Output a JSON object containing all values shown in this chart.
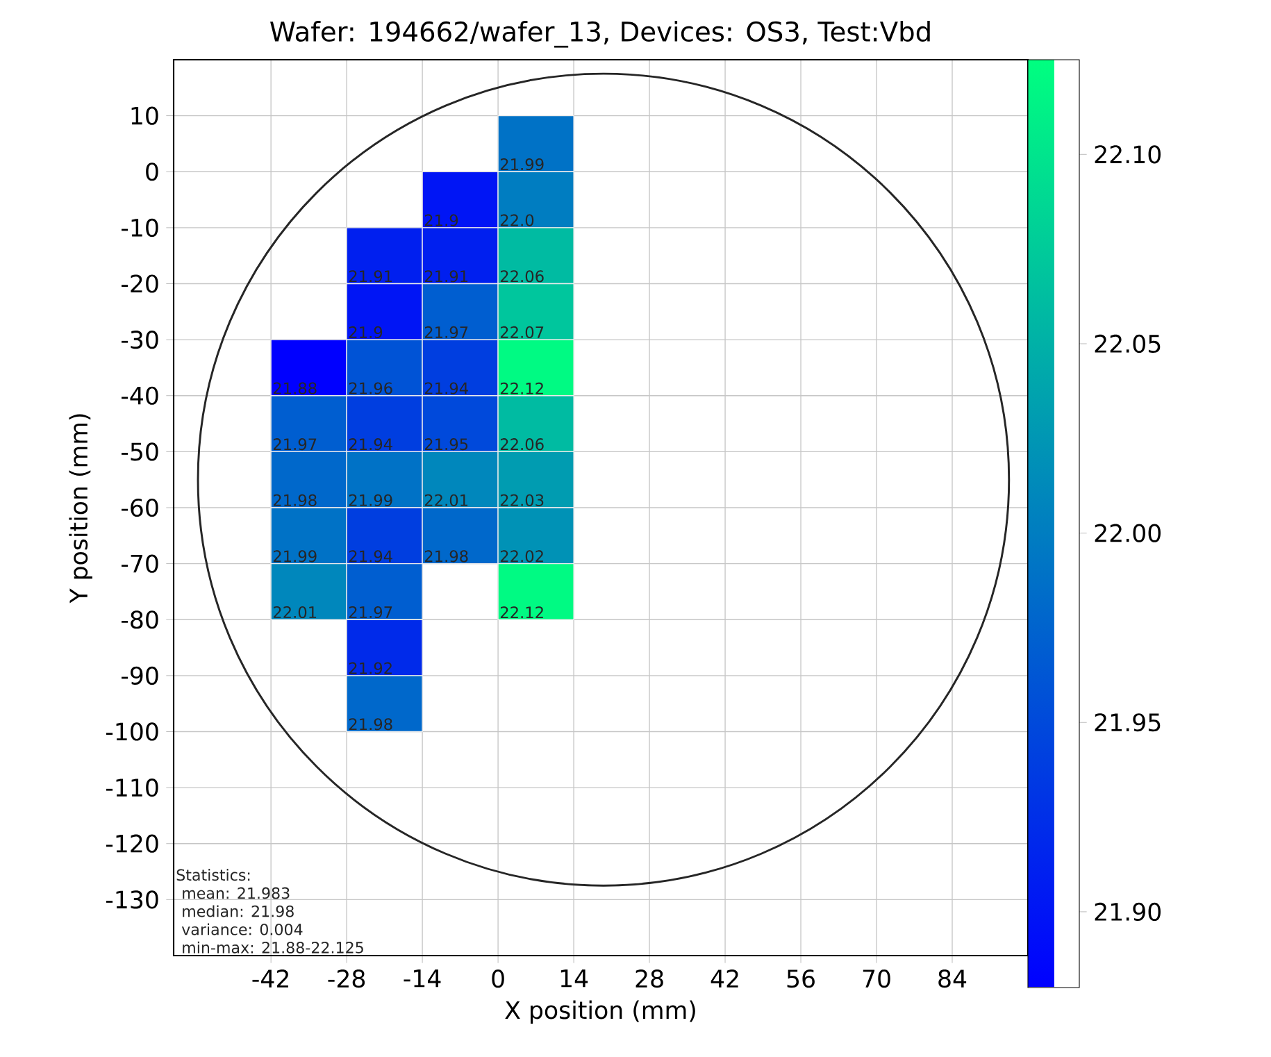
{
  "chart_data": {
    "type": "heatmap",
    "title": "Wafer: 194662/wafer_13, Devices: OS3, Test:Vbd",
    "xlabel": "X position (mm)",
    "ylabel": "Y position (mm)",
    "x": [
      -35,
      -21,
      -7,
      7
    ],
    "y": [
      5,
      -5,
      -15,
      -25,
      -35,
      -45,
      -55,
      -65,
      -75,
      -85,
      -95
    ],
    "cells": [
      [
        null,
        null,
        null,
        21.99
      ],
      [
        null,
        null,
        21.9,
        22.0
      ],
      [
        null,
        21.91,
        21.91,
        22.06
      ],
      [
        null,
        21.9,
        21.97,
        22.07
      ],
      [
        21.88,
        21.96,
        21.94,
        22.12
      ],
      [
        21.97,
        21.94,
        21.95,
        22.06
      ],
      [
        21.98,
        21.99,
        22.01,
        22.03
      ],
      [
        21.99,
        21.94,
        21.98,
        22.02
      ],
      [
        22.01,
        21.97,
        null,
        22.12
      ],
      [
        null,
        21.92,
        null,
        null
      ],
      [
        null,
        21.98,
        null,
        null
      ]
    ],
    "cell_labels": [
      [
        null,
        null,
        null,
        "21.99"
      ],
      [
        null,
        null,
        "21.9",
        "22.0"
      ],
      [
        null,
        "21.91",
        "21.91",
        "22.06"
      ],
      [
        null,
        "21.9",
        "21.97",
        "22.07"
      ],
      [
        "21.88",
        "21.96",
        "21.94",
        "22.12"
      ],
      [
        "21.97",
        "21.94",
        "21.95",
        "22.06"
      ],
      [
        "21.98",
        "21.99",
        "22.01",
        "22.03"
      ],
      [
        "21.99",
        "21.94",
        "21.98",
        "22.02"
      ],
      [
        "22.01",
        "21.97",
        null,
        "22.12"
      ],
      [
        null,
        "21.92",
        null,
        null
      ],
      [
        null,
        "21.98",
        null,
        null
      ]
    ],
    "xlim": [
      -60,
      98
    ],
    "ylim": [
      -140,
      20
    ],
    "xticks": [
      -42,
      -28,
      -14,
      0,
      14,
      28,
      42,
      56,
      70,
      84
    ],
    "yticks": [
      10,
      0,
      -10,
      -20,
      -30,
      -40,
      -50,
      -60,
      -70,
      -80,
      -90,
      -100,
      -110,
      -120,
      -130
    ],
    "clim": [
      21.88,
      22.125
    ],
    "cticks": [
      {
        "value": 21.9,
        "label": "21.90"
      },
      {
        "value": 21.95,
        "label": "21.95"
      },
      {
        "value": 22.0,
        "label": "22.00"
      },
      {
        "value": 22.05,
        "label": "22.05"
      },
      {
        "value": 22.1,
        "label": "22.10"
      }
    ],
    "grid": true,
    "annotations": [
      "Statistics:",
      "mean: 21.983",
      "median: 21.98",
      "variance: 0.004",
      "min-max: 21.88-22.125"
    ]
  }
}
